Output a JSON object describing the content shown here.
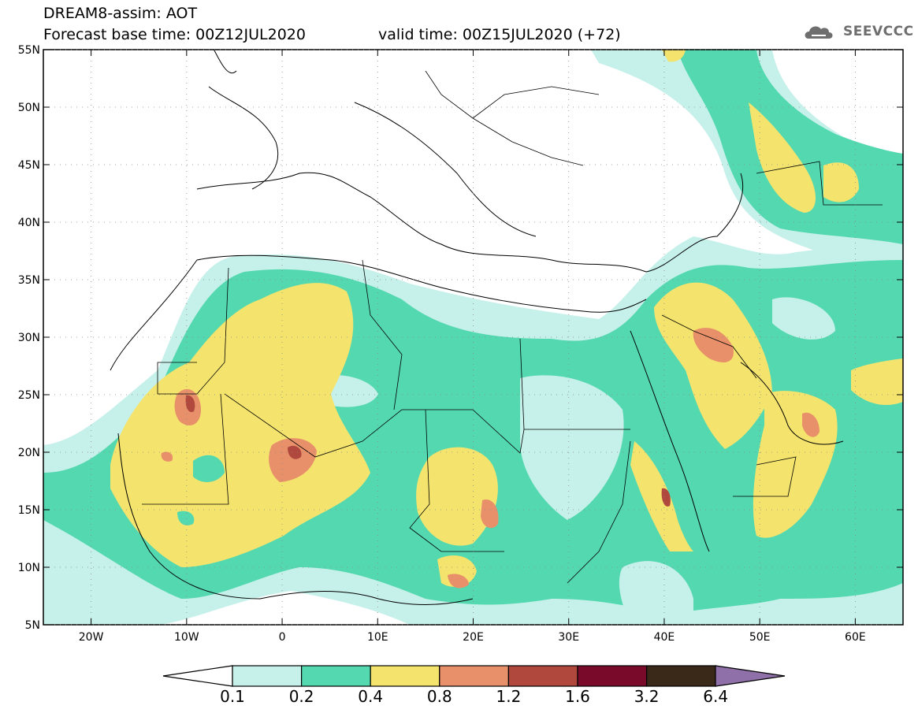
{
  "header": {
    "title": "DREAM8-assim: AOT",
    "base_time": "Forecast base time: 00Z12JUL2020",
    "valid_time": "valid time: 00Z15JUL2020 (+72)",
    "logo": "SEEVCCC"
  },
  "map": {
    "lon_labels": [
      "20W",
      "10W",
      "0",
      "10E",
      "20E",
      "30E",
      "40E",
      "50E",
      "60E"
    ],
    "lat_labels": [
      "55N",
      "50N",
      "45N",
      "40N",
      "35N",
      "30N",
      "25N",
      "20N",
      "15N",
      "10N",
      "5N"
    ],
    "extent": {
      "lon": [
        -25,
        65
      ],
      "lat": [
        5,
        55
      ]
    },
    "grid": "dotted"
  },
  "colorbar": {
    "labels": [
      "0.1",
      "0.2",
      "0.4",
      "0.8",
      "1.2",
      "1.6",
      "3.2",
      "6.4"
    ],
    "colors": [
      "#c6f0ea",
      "#54d8b0",
      "#f4e46e",
      "#e8906a",
      "#b0483e",
      "#7a0a2a",
      "#3a2818",
      "#9070a8"
    ]
  }
}
